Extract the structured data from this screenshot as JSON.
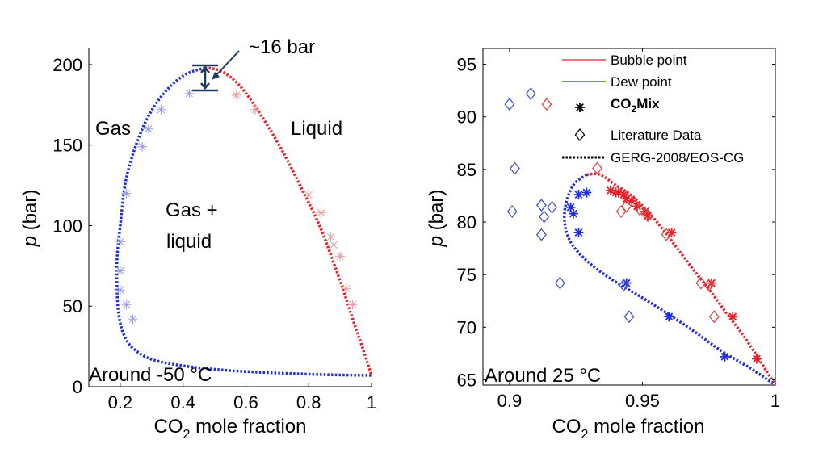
{
  "colors": {
    "bubble": "#e8202a",
    "dew": "#1f2de0",
    "lit_bubble": "#d94a4a",
    "lit_dew": "#4a56c8",
    "annotation": "#1f3a5f",
    "axis": "#000000"
  },
  "chart_data": [
    {
      "type": "line",
      "title": "",
      "xlabel_main": "CO",
      "xlabel_sub": "2",
      "xlabel_rest": " mole fraction",
      "ylabel_italic": "p",
      "ylabel_rest": " (bar)",
      "xlim": [
        0.1,
        1.0
      ],
      "ylim": [
        0,
        210
      ],
      "xticks": [
        0.2,
        0.4,
        0.6,
        0.8,
        1
      ],
      "xtick_labels": [
        "0.2",
        "0.4",
        "0.6",
        "0.8",
        "1"
      ],
      "yticks": [
        0,
        50,
        100,
        150,
        200
      ],
      "ytick_labels": [
        "0",
        "50",
        "100",
        "150",
        "200"
      ],
      "annotations": {
        "pressure_gap": "~16 bar",
        "region_gas": "Gas",
        "region_liquid": "Liquid",
        "region_twophase_line1": "Gas +",
        "region_twophase_line2": "liquid",
        "temperature": "Around -50 °C"
      },
      "series": [
        {
          "role": "dew-curve",
          "style": "dotted",
          "color": "#1f2de0",
          "x": [
            0.47,
            0.4,
            0.33,
            0.27,
            0.22,
            0.2,
            0.19,
            0.19,
            0.195,
            0.21,
            0.24,
            0.3,
            0.4,
            0.55,
            0.7,
            0.85,
            1.0
          ],
          "y": [
            198,
            193,
            180,
            160,
            130,
            100,
            80,
            60,
            45,
            33,
            24,
            17,
            13,
            10,
            8.5,
            7.5,
            7
          ]
        },
        {
          "role": "bubble-curve",
          "style": "dotted",
          "color": "#e8202a",
          "x": [
            0.47,
            0.52,
            0.58,
            0.65,
            0.72,
            0.78,
            0.83,
            0.87,
            0.91,
            0.94,
            0.97,
            1.0
          ],
          "y": [
            198,
            196,
            187,
            168,
            145,
            122,
            102,
            82,
            60,
            42,
            25,
            7
          ]
        },
        {
          "role": "dew-points",
          "marker": "star",
          "color": "#9a9ce0",
          "x": [
            0.42,
            0.33,
            0.29,
            0.27,
            0.22,
            0.2,
            0.2,
            0.2,
            0.22,
            0.24
          ],
          "y": [
            182,
            172,
            160,
            149,
            120,
            90,
            72,
            60,
            51,
            42
          ]
        },
        {
          "role": "bubble-points",
          "marker": "star",
          "color": "#e0a0a0",
          "x": [
            0.57,
            0.63,
            0.8,
            0.84,
            0.87,
            0.88,
            0.9,
            0.92,
            0.94
          ],
          "y": [
            181,
            172,
            119,
            108,
            93,
            88,
            81,
            61,
            51
          ]
        }
      ]
    },
    {
      "type": "line",
      "title": "",
      "xlabel_main": "CO",
      "xlabel_sub": "2",
      "xlabel_rest": " mole fraction",
      "ylabel_italic": "p",
      "ylabel_rest": " (bar)",
      "xlim": [
        0.89,
        1.0
      ],
      "ylim": [
        64.5,
        96.5
      ],
      "xticks": [
        0.9,
        0.95,
        1
      ],
      "xtick_labels": [
        "0.9",
        "0.95",
        "1"
      ],
      "yticks": [
        65,
        70,
        75,
        80,
        85,
        90,
        95
      ],
      "ytick_labels": [
        "65",
        "70",
        "75",
        "80",
        "85",
        "90",
        "95"
      ],
      "annotations": {
        "temperature": "Around 25 °C"
      },
      "legend": {
        "placement": "top-right",
        "entries": [
          {
            "label": "Bubble point",
            "symbol": "red-line"
          },
          {
            "label": "Dew point",
            "symbol": "blue-line"
          },
          {
            "label_main": "CO",
            "label_sub": "2",
            "label_rest": "Mix",
            "symbol": "black-star"
          },
          {
            "label": "Literature Data",
            "symbol": "diamond"
          },
          {
            "label": "GERG-2008/EOS-CG",
            "symbol": "black-dotted"
          }
        ]
      },
      "series": [
        {
          "name": "Bubble point",
          "style": "dotted",
          "color": "#e8202a",
          "x": [
            0.929,
            0.934,
            0.94,
            0.946,
            0.952,
            0.958,
            0.964,
            0.97,
            0.976,
            0.982,
            0.988,
            0.993,
            0.997,
            1.0
          ],
          "y": [
            84.5,
            84.5,
            83.5,
            82.5,
            81,
            79.2,
            77.2,
            75.2,
            73.3,
            71.2,
            69.2,
            67.3,
            65.7,
            64.5
          ]
        },
        {
          "name": "Dew point",
          "style": "dotted",
          "color": "#1f2de0",
          "x": [
            0.929,
            0.924,
            0.921,
            0.921,
            0.924,
            0.931,
            0.94,
            0.95,
            0.96,
            0.97,
            0.98,
            0.99,
            0.996,
            1.0
          ],
          "y": [
            84.5,
            83.5,
            81.5,
            79.5,
            77.7,
            75.9,
            74.3,
            72.8,
            71.2,
            69.5,
            67.7,
            66.2,
            65.2,
            64.5
          ]
        },
        {
          "name": "CO2Mix bubble",
          "marker": "star",
          "color": "#e8202a",
          "x": [
            0.938,
            0.94,
            0.941,
            0.943,
            0.944,
            0.946,
            0.948,
            0.951,
            0.952,
            0.961,
            0.976,
            0.984,
            0.993
          ],
          "y": [
            83.0,
            82.8,
            82.8,
            82.6,
            82.2,
            82.0,
            81.5,
            81.0,
            80.6,
            79.0,
            74.2,
            71.0,
            67.0
          ]
        },
        {
          "name": "CO2Mix dew",
          "marker": "star",
          "color": "#1f2de0",
          "x": [
            0.926,
            0.929,
            0.923,
            0.924,
            0.926,
            0.944,
            0.96,
            0.981
          ],
          "y": [
            82.6,
            82.8,
            81.4,
            80.8,
            79.0,
            74.2,
            71.0,
            67.2
          ]
        },
        {
          "name": "Literature bubble",
          "marker": "diamond",
          "color": "#d94a4a",
          "x": [
            0.914,
            0.933,
            0.944,
            0.942,
            0.949,
            0.952,
            0.959,
            0.972,
            0.975,
            0.977
          ],
          "y": [
            91.2,
            85.1,
            81.5,
            81.0,
            81.2,
            80.6,
            78.8,
            74.2,
            74.0,
            71.0
          ]
        },
        {
          "name": "Literature dew",
          "marker": "diamond",
          "color": "#4a56c8",
          "x": [
            0.9,
            0.908,
            0.902,
            0.901,
            0.912,
            0.913,
            0.916,
            0.912,
            0.919,
            0.943,
            0.945
          ],
          "y": [
            91.2,
            92.2,
            85.1,
            81.0,
            81.6,
            80.5,
            81.4,
            78.8,
            74.2,
            74.0,
            71.0
          ]
        }
      ]
    }
  ]
}
